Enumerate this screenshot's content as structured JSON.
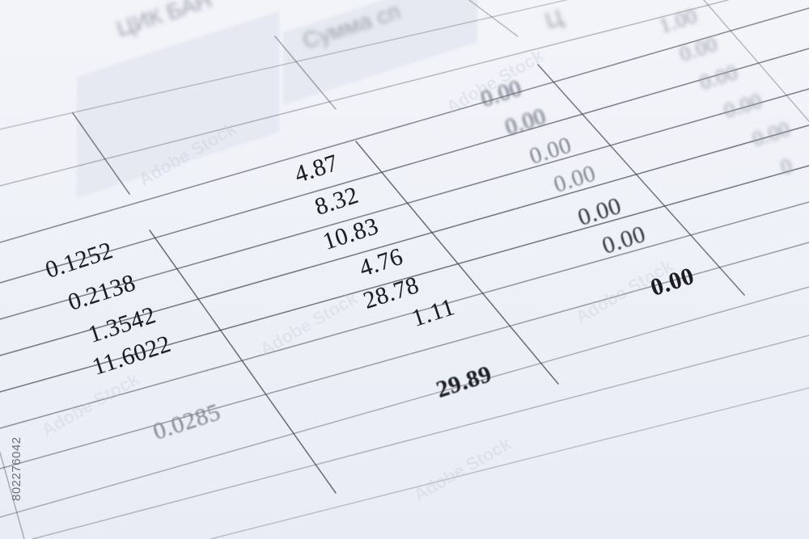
{
  "header": {
    "col_a": "ЦИК БАН",
    "col_b": "Сумма сп",
    "col_c": "Ц"
  },
  "right_column_values": [
    "1.00",
    "0.00",
    "0.00",
    "0.00",
    "0.00",
    "0"
  ],
  "middle_zero_column": [
    "0.00",
    "0.00",
    "0.00",
    "0.00",
    "0.00",
    "0.00"
  ],
  "amount_column": [
    "4.87",
    "8.32",
    "10.83",
    "4.76",
    "28.78",
    "1.11"
  ],
  "amount_total": "29.89",
  "rate_column": [
    "0.1252",
    "0.2138",
    "1.3542",
    "11.6022"
  ],
  "rate_extra": "0.0285",
  "zero_total": "0.00",
  "stock_id": "802276042",
  "watermark": "Adobe Stock"
}
